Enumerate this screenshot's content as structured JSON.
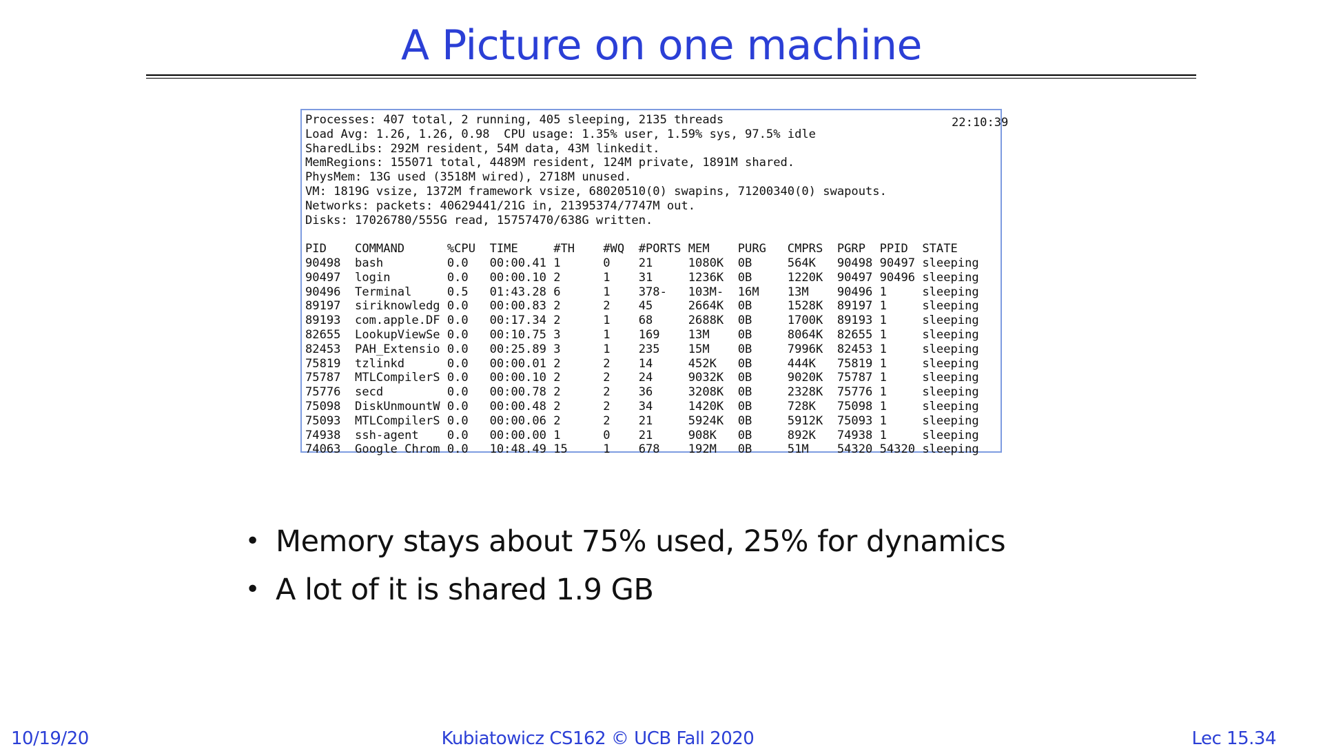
{
  "slide": {
    "title": "A Picture on one machine"
  },
  "terminal": {
    "clock": "22:10:39",
    "summary": [
      "Processes: 407 total, 2 running, 405 sleeping, 2135 threads",
      "Load Avg: 1.26, 1.26, 0.98  CPU usage: 1.35% user, 1.59% sys, 97.5% idle",
      "SharedLibs: 292M resident, 54M data, 43M linkedit.",
      "MemRegions: 155071 total, 4489M resident, 124M private, 1891M shared.",
      "PhysMem: 13G used (3518M wired), 2718M unused.",
      "VM: 1819G vsize, 1372M framework vsize, 68020510(0) swapins, 71200340(0) swapouts.",
      "Networks: packets: 40629441/21G in, 21395374/7747M out.",
      "Disks: 17026780/555G read, 15757470/638G written."
    ],
    "header": "PID    COMMAND      %CPU  TIME     #TH    #WQ  #PORTS MEM    PURG   CMPRS  PGRP  PPID  STATE",
    "rows": [
      "90498  bash         0.0   00:00.41 1      0    21     1080K  0B     564K   90498 90497 sleeping",
      "90497  login        0.0   00:00.10 2      1    31     1236K  0B     1220K  90497 90496 sleeping",
      "90496  Terminal     0.5   01:43.28 6      1    378-   103M-  16M    13M    90496 1     sleeping",
      "89197  siriknowledg 0.0   00:00.83 2      2    45     2664K  0B     1528K  89197 1     sleeping",
      "89193  com.apple.DF 0.0   00:17.34 2      1    68     2688K  0B     1700K  89193 1     sleeping",
      "82655  LookupViewSe 0.0   00:10.75 3      1    169    13M    0B     8064K  82655 1     sleeping",
      "82453  PAH_Extensio 0.0   00:25.89 3      1    235    15M    0B     7996K  82453 1     sleeping",
      "75819  tzlinkd      0.0   00:00.01 2      2    14     452K   0B     444K   75819 1     sleeping",
      "75787  MTLCompilerS 0.0   00:00.10 2      2    24     9032K  0B     9020K  75787 1     sleeping",
      "75776  secd         0.0   00:00.78 2      2    36     3208K  0B     2328K  75776 1     sleeping",
      "75098  DiskUnmountW 0.0   00:00.48 2      2    34     1420K  0B     728K   75098 1     sleeping",
      "75093  MTLCompilerS 0.0   00:00.06 2      2    21     5924K  0B     5912K  75093 1     sleeping",
      "74938  ssh-agent    0.0   00:00.00 1      0    21     908K   0B     892K   74938 1     sleeping",
      "74063  Google Chrom 0.0   10:48.49 15     1    678    192M   0B     51M    54320 54320 sleeping"
    ]
  },
  "bullets": [
    "Memory stays about 75% used, 25% for dynamics",
    "A lot of it is shared 1.9 GB"
  ],
  "footer": {
    "date": "10/19/20",
    "course": "Kubiatowicz CS162 © UCB Fall 2020",
    "lecture": "Lec 15.34"
  },
  "colors": {
    "accent": "#2b3fd6",
    "terminal_border": "#7d9be0"
  }
}
